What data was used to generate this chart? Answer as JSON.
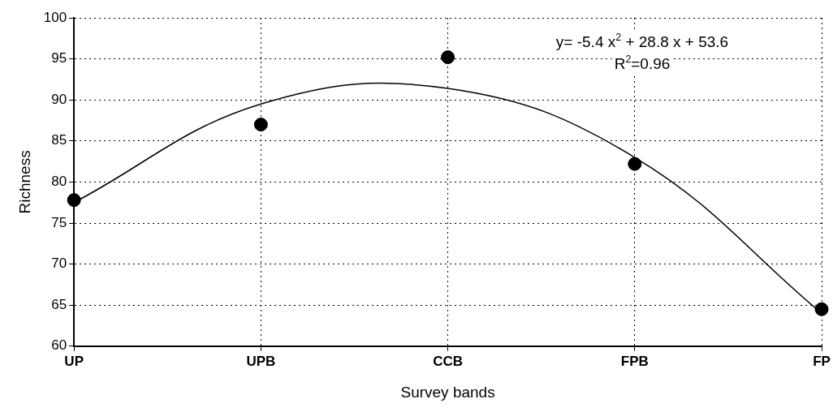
{
  "chart_data": {
    "type": "scatter",
    "xlabel": "Survey bands",
    "ylabel": "Richness",
    "categories": [
      "UP",
      "UPB",
      "CCB",
      "FPB",
      "FP"
    ],
    "ylim": [
      60,
      100
    ],
    "yticks": [
      60,
      65,
      70,
      75,
      80,
      85,
      90,
      95,
      100
    ],
    "grid": true,
    "legend": false,
    "marker": "circle",
    "annotations": [
      "y= -5.4 x$^{2}$ + 28.8 x + 53.6",
      "R$^{2}$=0.96"
    ],
    "series": [
      {
        "color": "#000000",
        "values": [
          77.8,
          87,
          95.2,
          82.2,
          64.5
        ]
      },
      {
        "type": "line",
        "color": "#000000",
        "line_style": "solid",
        "marker": "none",
        "values": [
          77.5,
          89.5,
          91.4,
          83,
          64
        ]
      }
    ]
  }
}
